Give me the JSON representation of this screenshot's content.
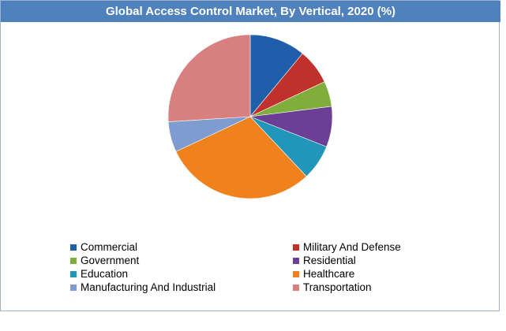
{
  "chart_data": {
    "type": "pie",
    "title": "Global Access Control Market, By Vertical, 2020 (%)",
    "categories": [
      "Commercial",
      "Military And Defense",
      "Government",
      "Residential",
      "Education",
      "Healthcare",
      "Manufacturing And Industrial",
      "Transportation"
    ],
    "values": [
      11,
      7,
      5,
      8,
      7,
      30,
      6,
      26
    ],
    "colors": [
      "#1f5fa9",
      "#c0312b",
      "#7fae3c",
      "#6b3f95",
      "#2196b8",
      "#f0821e",
      "#7e9ccf",
      "#d87f7f"
    ],
    "legend_position": "bottom",
    "grid": false
  }
}
